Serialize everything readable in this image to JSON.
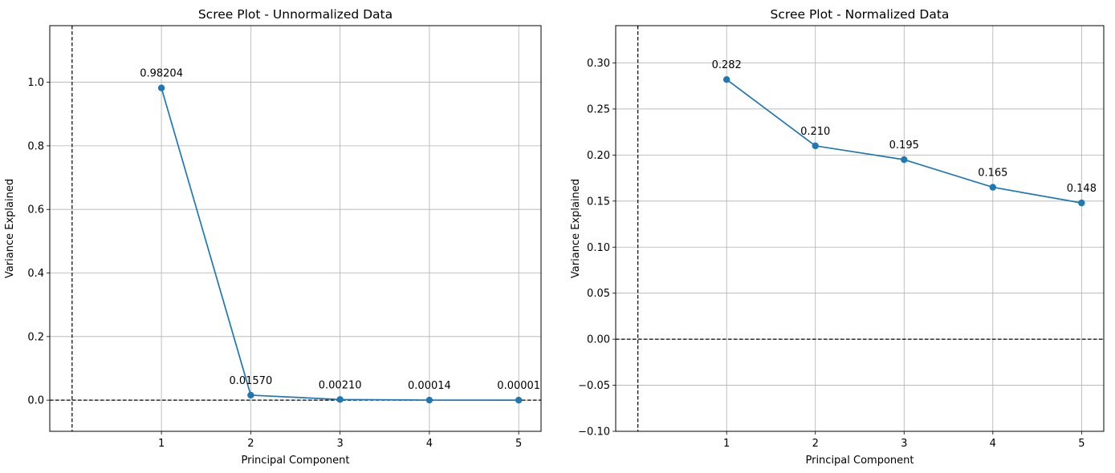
{
  "colors": {
    "series": "#1f77b4",
    "grid": "#b0b0b0",
    "reference_lines": "#000000"
  },
  "chart_data": [
    {
      "type": "line",
      "title": "Scree Plot - Unnormalized Data",
      "xlabel": "Principal Component",
      "ylabel": "Variance Explained",
      "x": [
        1,
        2,
        3,
        4,
        5
      ],
      "values": [
        0.98204,
        0.0157,
        0.0021,
        0.00014,
        1e-05
      ],
      "data_labels": [
        "0.98204",
        "0.01570",
        "0.00210",
        "0.00014",
        "0.00001"
      ],
      "xticks": [
        "1",
        "2",
        "3",
        "4",
        "5"
      ],
      "yticks": [
        "0.0",
        "0.2",
        "0.4",
        "0.6",
        "0.8",
        "1.0"
      ],
      "xlim": [
        -0.25,
        5.25
      ],
      "ylim": [
        -0.098,
        1.178
      ],
      "reference_lines": {
        "horizontal_y": 0,
        "vertical_x": 0
      },
      "marker": "circle",
      "grid": true
    },
    {
      "type": "line",
      "title": "Scree Plot - Normalized Data",
      "xlabel": "Principal Component",
      "ylabel": "Variance Explained",
      "x": [
        1,
        2,
        3,
        4,
        5
      ],
      "values": [
        0.282,
        0.21,
        0.195,
        0.165,
        0.148
      ],
      "data_labels": [
        "0.282",
        "0.210",
        "0.195",
        "0.165",
        "0.148"
      ],
      "xticks": [
        "1",
        "2",
        "3",
        "4",
        "5"
      ],
      "yticks": [
        "−0.10",
        "−0.05",
        "0.00",
        "0.05",
        "0.10",
        "0.15",
        "0.20",
        "0.25",
        "0.30"
      ],
      "xlim": [
        -0.25,
        5.25
      ],
      "ylim": [
        -0.1,
        0.3405
      ],
      "reference_lines": {
        "horizontal_y": 0,
        "vertical_x": 0
      },
      "marker": "circle",
      "grid": true
    }
  ]
}
